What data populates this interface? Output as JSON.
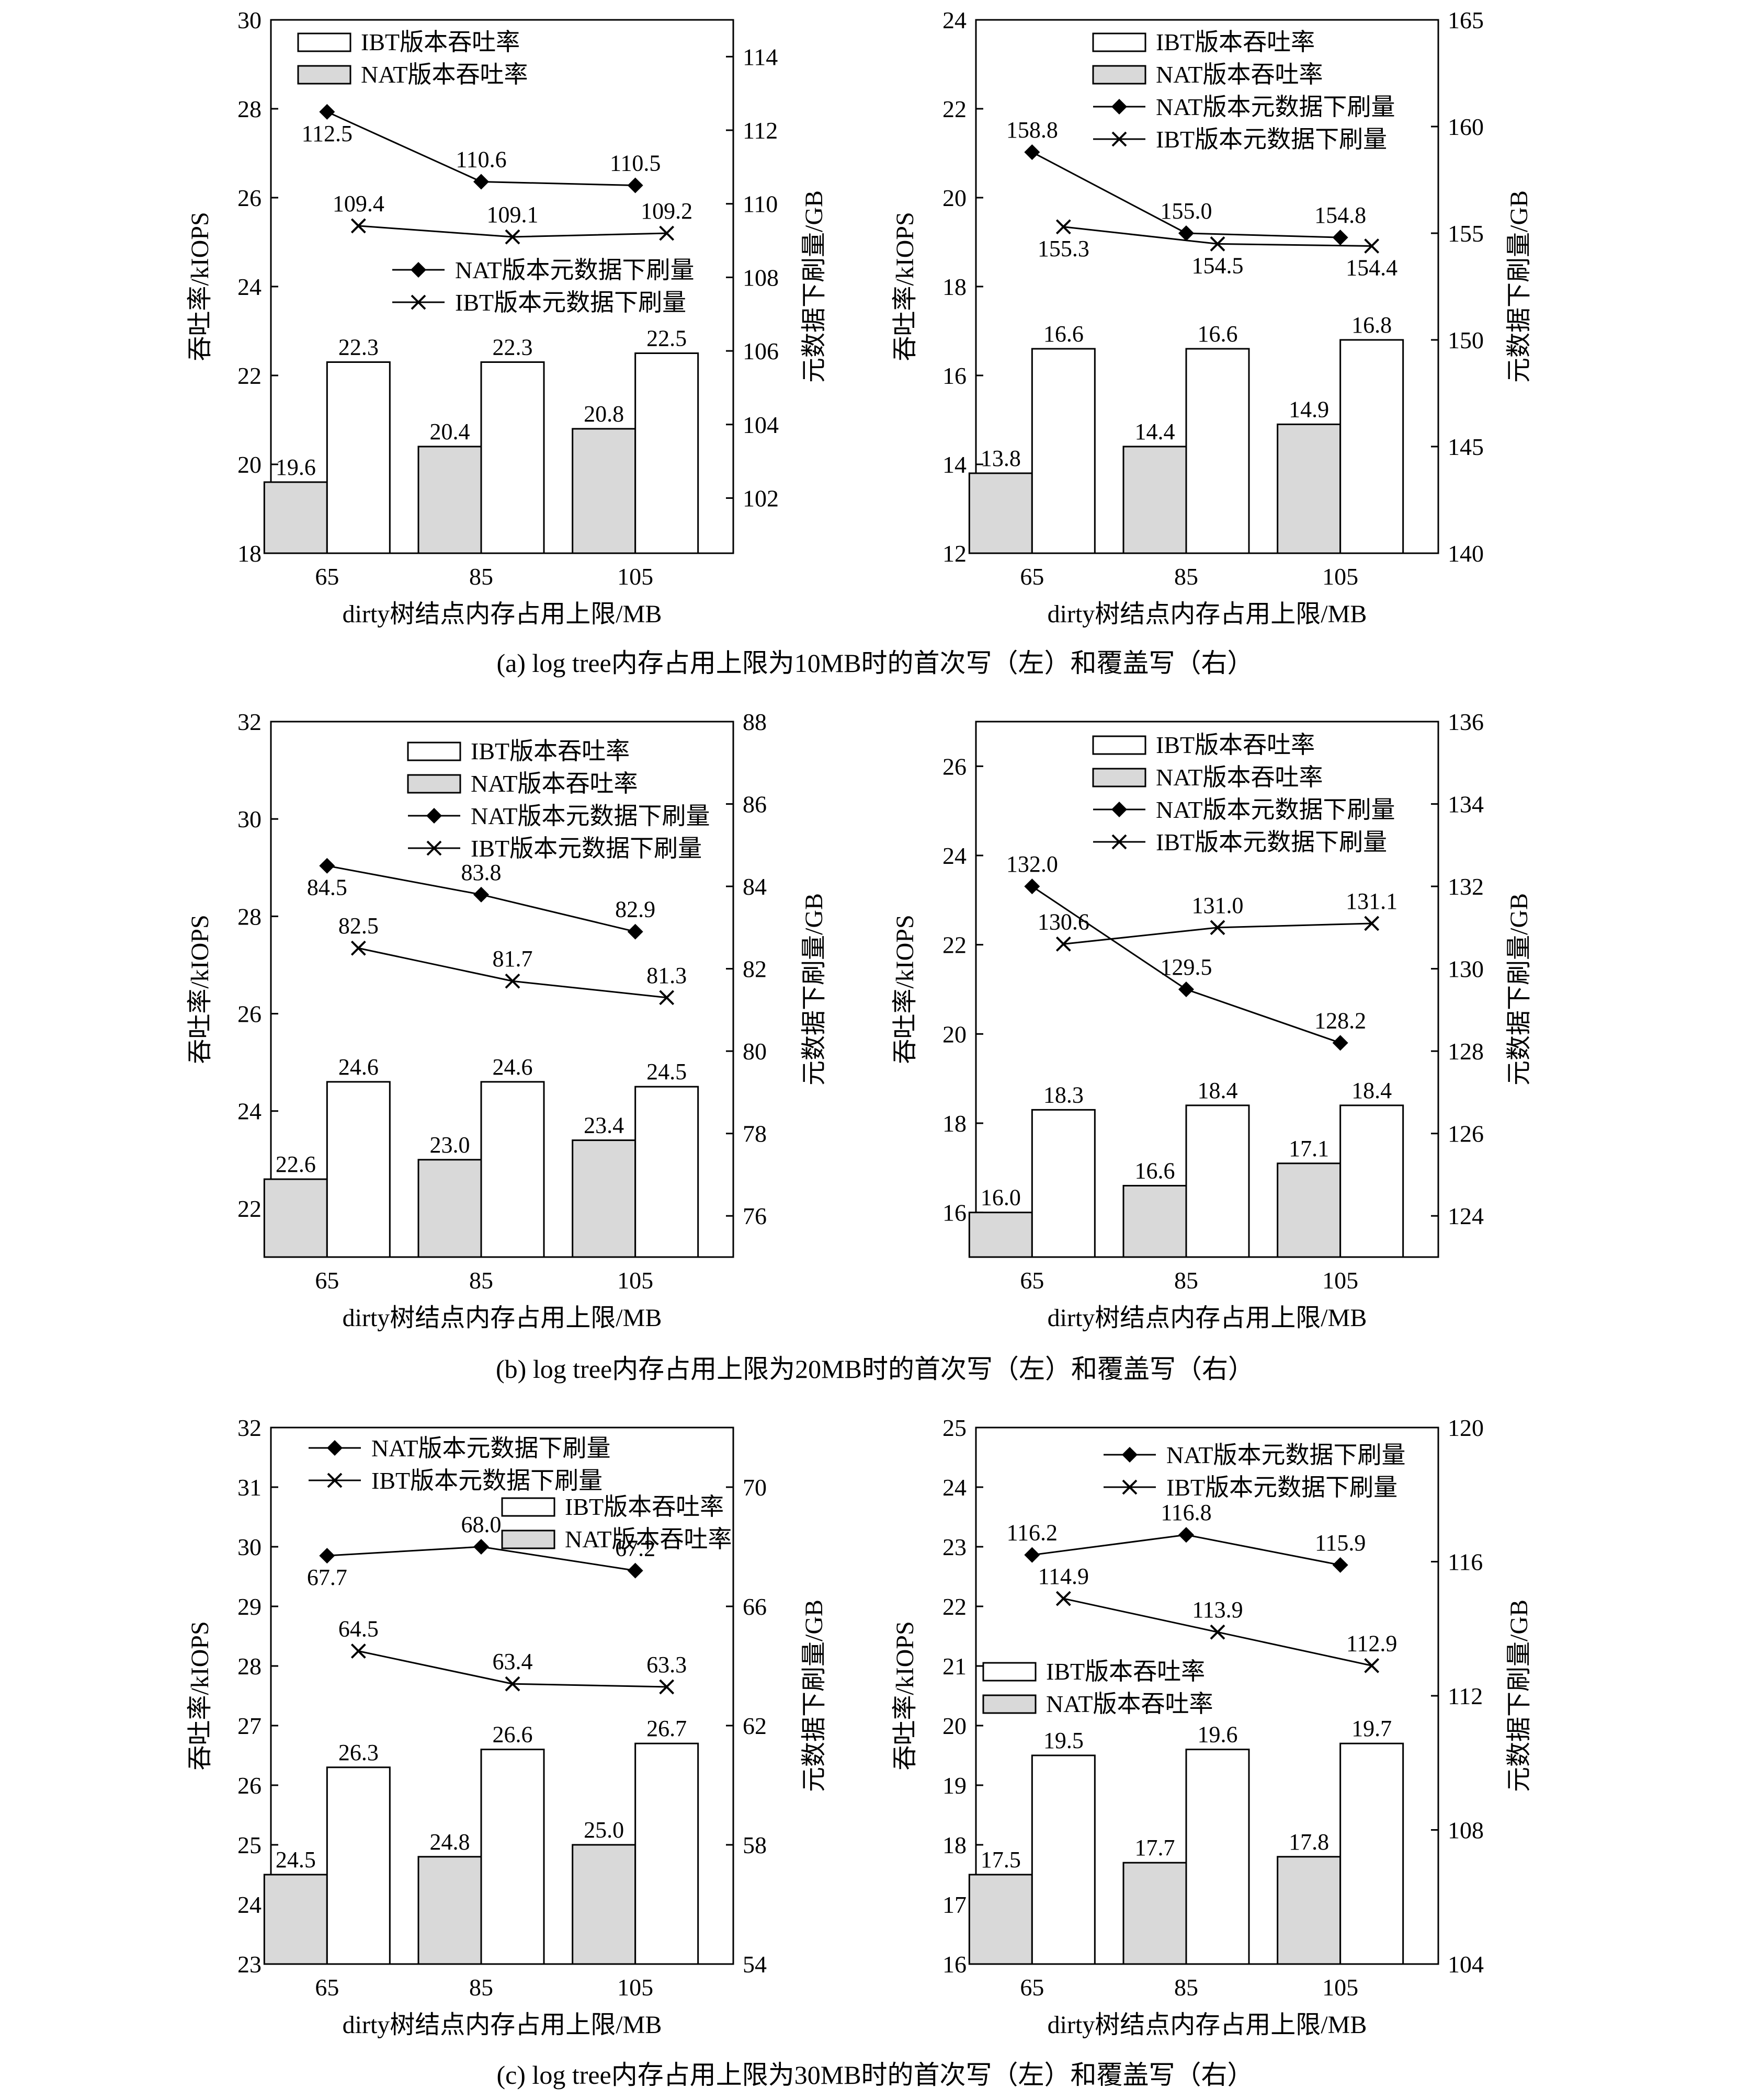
{
  "figure": {
    "subcaptions": [
      "(a)  log tree内存占用上限为10MB时的首次写（左）和覆盖写（右）",
      "(b)  log tree内存占用上限为20MB时的首次写（左）和覆盖写（右）",
      "(c)  log tree内存占用上限为30MB时的首次写（左）和覆盖写（右）"
    ]
  },
  "colors": {
    "nat_bar": "#d9d9d9",
    "ibt_bar": "#ffffff",
    "line": "#000000"
  },
  "chart_data": [
    {
      "type": "bar+line",
      "panel": "a-left",
      "xlabel": "dirty树结点内存占用上限/MB",
      "ylabel": "吞吐率/kIOPS",
      "y2label": "元数据下刷量/GB",
      "categories": [
        "65",
        "85",
        "105"
      ],
      "ylim": [
        18,
        30
      ],
      "yticks": [
        18,
        20,
        22,
        24,
        26,
        28,
        30
      ],
      "y2lim": [
        100.5,
        115
      ],
      "y2ticks": [
        102,
        104,
        106,
        108,
        110,
        112,
        114
      ],
      "bar_series": [
        {
          "name": "NAT版本吞吐率",
          "values": [
            19.6,
            20.4,
            20.8
          ]
        },
        {
          "name": "IBT版本吞吐率",
          "values": [
            22.3,
            22.3,
            22.5
          ]
        }
      ],
      "line_series": [
        {
          "name": "NAT版本元数据下刷量",
          "marker": "diamond",
          "values": [
            112.5,
            110.6,
            110.5
          ]
        },
        {
          "name": "IBT版本元数据下刷量",
          "marker": "x",
          "values": [
            109.4,
            109.1,
            109.2
          ]
        }
      ]
    },
    {
      "type": "bar+line",
      "panel": "a-right",
      "xlabel": "dirty树结点内存占用上限/MB",
      "ylabel": "吞吐率/kIOPS",
      "y2label": "元数据下刷量/GB",
      "categories": [
        "65",
        "85",
        "105"
      ],
      "ylim": [
        12,
        24
      ],
      "yticks": [
        12,
        14,
        16,
        18,
        20,
        22,
        24
      ],
      "y2lim": [
        140,
        165
      ],
      "y2ticks": [
        140,
        145,
        150,
        155,
        160,
        165
      ],
      "bar_series": [
        {
          "name": "NAT版本吞吐率",
          "values": [
            13.8,
            14.4,
            14.9
          ]
        },
        {
          "name": "IBT版本吞吐率",
          "values": [
            16.6,
            16.6,
            16.8
          ]
        }
      ],
      "line_series": [
        {
          "name": "NAT版本元数据下刷量",
          "marker": "diamond",
          "values": [
            158.8,
            155.0,
            154.8
          ]
        },
        {
          "name": "IBT版本元数据下刷量",
          "marker": "x",
          "values": [
            155.3,
            154.5,
            154.4
          ]
        }
      ]
    },
    {
      "type": "bar+line",
      "panel": "b-left",
      "xlabel": "dirty树结点内存占用上限/MB",
      "ylabel": "吞吐率/kIOPS",
      "y2label": "元数据下刷量/GB",
      "categories": [
        "65",
        "85",
        "105"
      ],
      "ylim": [
        21,
        32
      ],
      "yticks": [
        22,
        24,
        26,
        28,
        30,
        32
      ],
      "y2lim": [
        75,
        88
      ],
      "y2ticks": [
        76,
        78,
        80,
        82,
        84,
        86,
        88
      ],
      "bar_series": [
        {
          "name": "NAT版本吞吐率",
          "values": [
            22.6,
            23.0,
            23.4
          ]
        },
        {
          "name": "IBT版本吞吐率",
          "values": [
            24.6,
            24.6,
            24.5
          ]
        }
      ],
      "line_series": [
        {
          "name": "NAT版本元数据下刷量",
          "marker": "diamond",
          "values": [
            84.5,
            83.8,
            82.9
          ]
        },
        {
          "name": "IBT版本元数据下刷量",
          "marker": "x",
          "values": [
            82.5,
            81.7,
            81.3
          ]
        }
      ]
    },
    {
      "type": "bar+line",
      "panel": "b-right",
      "xlabel": "dirty树结点内存占用上限/MB",
      "ylabel": "吞吐率/kIOPS",
      "y2label": "元数据下刷量/GB",
      "categories": [
        "65",
        "85",
        "105"
      ],
      "ylim": [
        15,
        27
      ],
      "yticks": [
        16,
        18,
        20,
        22,
        24,
        26
      ],
      "y2lim": [
        123,
        136
      ],
      "y2ticks": [
        124,
        126,
        128,
        130,
        132,
        134,
        136
      ],
      "bar_series": [
        {
          "name": "NAT版本吞吐率",
          "values": [
            16.0,
            16.6,
            17.1
          ]
        },
        {
          "name": "IBT版本吞吐率",
          "values": [
            18.3,
            18.4,
            18.4
          ]
        }
      ],
      "line_series": [
        {
          "name": "NAT版本元数据下刷量",
          "marker": "diamond",
          "values": [
            132.0,
            129.5,
            128.2
          ]
        },
        {
          "name": "IBT版本元数据下刷量",
          "marker": "x",
          "values": [
            130.6,
            131.0,
            131.1
          ]
        }
      ]
    },
    {
      "type": "bar+line",
      "panel": "c-left",
      "xlabel": "dirty树结点内存占用上限/MB",
      "ylabel": "吞吐率/kIOPS",
      "y2label": "元数据下刷量/GB",
      "categories": [
        "65",
        "85",
        "105"
      ],
      "ylim": [
        23,
        32
      ],
      "yticks": [
        23,
        24,
        25,
        26,
        27,
        28,
        29,
        30,
        31,
        32
      ],
      "y2lim": [
        54,
        72
      ],
      "y2ticks": [
        54,
        58,
        62,
        66,
        70
      ],
      "bar_series": [
        {
          "name": "NAT版本吞吐率",
          "values": [
            24.5,
            24.8,
            25.0
          ]
        },
        {
          "name": "IBT版本吞吐率",
          "values": [
            26.3,
            26.6,
            26.7
          ]
        }
      ],
      "line_series": [
        {
          "name": "NAT版本元数据下刷量",
          "marker": "diamond",
          "values": [
            67.7,
            68.0,
            67.2
          ]
        },
        {
          "name": "IBT版本元数据下刷量",
          "marker": "x",
          "values": [
            64.5,
            63.4,
            63.3
          ]
        }
      ]
    },
    {
      "type": "bar+line",
      "panel": "c-right",
      "xlabel": "dirty树结点内存占用上限/MB",
      "ylabel": "吞吐率/kIOPS",
      "y2label": "元数据下刷量/GB",
      "categories": [
        "65",
        "85",
        "105"
      ],
      "ylim": [
        16,
        25
      ],
      "yticks": [
        16,
        17,
        18,
        19,
        20,
        21,
        22,
        23,
        24,
        25
      ],
      "y2lim": [
        104,
        120
      ],
      "y2ticks": [
        104,
        108,
        112,
        116,
        120
      ],
      "bar_series": [
        {
          "name": "NAT版本吞吐率",
          "values": [
            17.5,
            17.7,
            17.8
          ]
        },
        {
          "name": "IBT版本吞吐率",
          "values": [
            19.5,
            19.6,
            19.7
          ]
        }
      ],
      "line_series": [
        {
          "name": "NAT版本元数据下刷量",
          "marker": "diamond",
          "values": [
            116.2,
            116.8,
            115.9
          ]
        },
        {
          "name": "IBT版本元数据下刷量",
          "marker": "x",
          "values": [
            114.9,
            113.9,
            112.9
          ]
        }
      ]
    }
  ]
}
